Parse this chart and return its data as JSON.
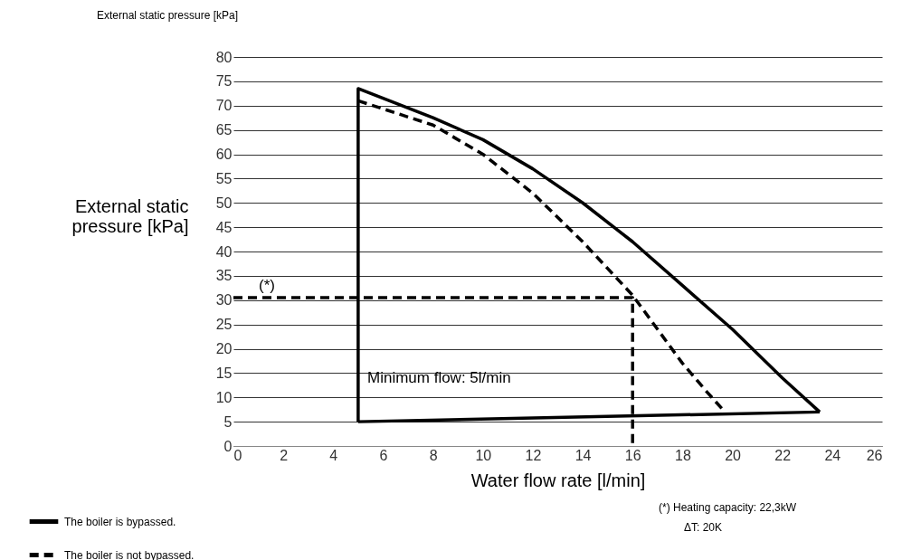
{
  "chart_data": {
    "type": "line",
    "title": "External static pressure [kPa]",
    "xlabel": "Water flow rate [l/min]",
    "ylabel": "External static pressure [kPa]",
    "xlim": [
      0,
      26
    ],
    "xticks": [
      0,
      2,
      4,
      6,
      8,
      10,
      12,
      14,
      16,
      18,
      20,
      22,
      24,
      26
    ],
    "ylim": [
      0,
      80
    ],
    "yticks": [
      0,
      5,
      10,
      15,
      20,
      25,
      30,
      35,
      40,
      45,
      50,
      55,
      60,
      65,
      70,
      75,
      80
    ],
    "grid": "y",
    "legend": "bottom left",
    "marker": "none",
    "series": [
      {
        "name": "The boiler is bypassed.",
        "color": "#000000",
        "line_style": "solid",
        "x": [
          5,
          5,
          8,
          10,
          12,
          14,
          16,
          18,
          20,
          22,
          23.5
        ],
        "values": [
          5,
          73.5,
          67.5,
          63,
          57,
          50,
          42,
          33,
          24,
          14,
          7
        ]
      },
      {
        "name": "The boiler is not bypassed.",
        "color": "#000000",
        "line_style": "dashed",
        "x": [
          5,
          8,
          10,
          12,
          14,
          16,
          17,
          18,
          19,
          19.7
        ],
        "values": [
          71,
          66,
          60,
          52,
          42,
          31,
          24,
          17,
          11,
          7
        ]
      },
      {
        "color": "#000000",
        "line_style": "solid",
        "x": [
          5,
          23.5
        ],
        "values": [
          5,
          7
        ]
      },
      {
        "color": "#000000",
        "line_style": "dashed",
        "x": [
          0,
          16,
          16
        ],
        "values": [
          30.5,
          30.5,
          0
        ]
      }
    ],
    "annotations": [
      "(*)",
      "Minimum flow: 5l/min",
      "(*)  Heating capacity: 22,3kW",
      "ΔT: 20K"
    ]
  }
}
